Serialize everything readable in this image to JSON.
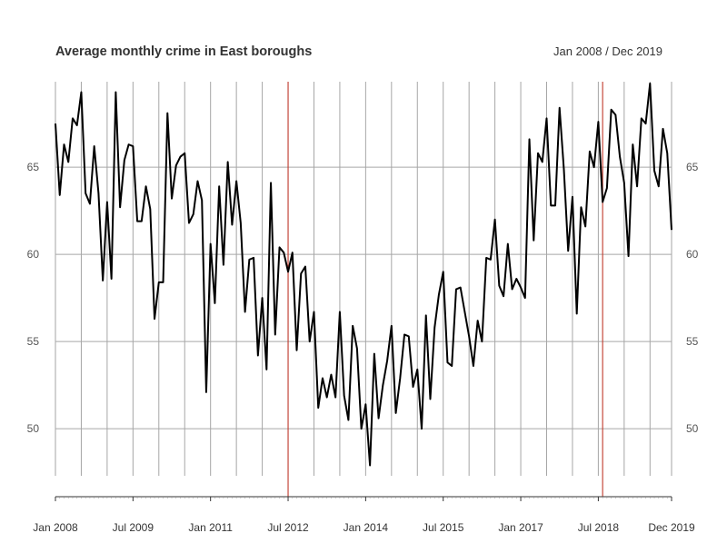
{
  "chart_data": {
    "type": "line",
    "title": "Average monthly crime in East boroughs",
    "date_range_label": "Jan 2008 / Dec 2019",
    "x_start": "2008-01",
    "x_end": "2019-12",
    "ylim": [
      47.3,
      69.9
    ],
    "yticks": [
      50,
      55,
      60,
      65
    ],
    "grid": true,
    "line_color": "#000000",
    "grid_color": "#a6a6a6",
    "event_line_color": "#c0392b",
    "event_lines": [
      "2012-07",
      "2018-08"
    ],
    "x_tick_labels": [
      {
        "date": "2008-01",
        "label": "Jan 2008"
      },
      {
        "date": "2009-07",
        "label": "Jul 2009"
      },
      {
        "date": "2011-01",
        "label": "Jan 2011"
      },
      {
        "date": "2012-07",
        "label": "Jul 2012"
      },
      {
        "date": "2014-01",
        "label": "Jan 2014"
      },
      {
        "date": "2015-07",
        "label": "Jul 2015"
      },
      {
        "date": "2017-01",
        "label": "Jan 2017"
      },
      {
        "date": "2018-07",
        "label": "Jul 2018"
      },
      {
        "date": "2019-12",
        "label": "Dec 2019"
      }
    ],
    "series": [
      {
        "values": [
          67.5,
          63.4,
          66.3,
          65.3,
          67.8,
          67.4,
          69.3,
          63.5,
          62.9,
          66.2,
          63.5,
          58.5,
          63.0,
          58.6,
          69.3,
          62.7,
          65.4,
          66.3,
          66.2,
          61.9,
          61.9,
          63.9,
          62.6,
          56.3,
          58.4,
          58.4,
          68.1,
          63.2,
          65.1,
          65.6,
          65.8,
          61.8,
          62.3,
          64.2,
          63.1,
          52.1,
          60.6,
          57.2,
          63.9,
          59.4,
          65.3,
          61.7,
          64.2,
          61.8,
          56.7,
          59.7,
          59.8,
          54.2,
          57.5,
          53.4,
          64.1,
          55.4,
          60.4,
          60.1,
          59.0,
          60.1,
          54.5,
          58.9,
          59.3,
          55.0,
          56.7,
          51.2,
          52.9,
          51.8,
          53.1,
          51.8,
          56.7,
          51.9,
          50.5,
          55.9,
          54.6,
          50.0,
          51.4,
          47.9,
          54.3,
          50.6,
          52.5,
          53.9,
          55.9,
          50.9,
          52.9,
          55.4,
          55.3,
          52.4,
          53.4,
          50.0,
          56.5,
          51.7,
          55.8,
          57.7,
          59.0,
          53.8,
          53.6,
          58.0,
          58.1,
          56.7,
          55.3,
          53.6,
          56.2,
          55.0,
          59.8,
          59.7,
          62.0,
          58.2,
          57.6,
          60.6,
          58.0,
          58.6,
          58.1,
          57.5,
          66.6,
          60.8,
          65.8,
          65.3,
          67.8,
          62.8,
          62.8,
          68.4,
          64.9,
          60.2,
          63.3,
          56.6,
          62.7,
          61.6,
          65.9,
          65.0,
          67.6,
          63.0,
          63.8,
          68.3,
          68.0,
          65.6,
          64.1,
          59.9,
          66.3,
          63.9,
          67.8,
          67.5,
          69.8,
          64.8,
          63.9,
          67.2,
          65.8,
          61.4
        ]
      }
    ]
  }
}
